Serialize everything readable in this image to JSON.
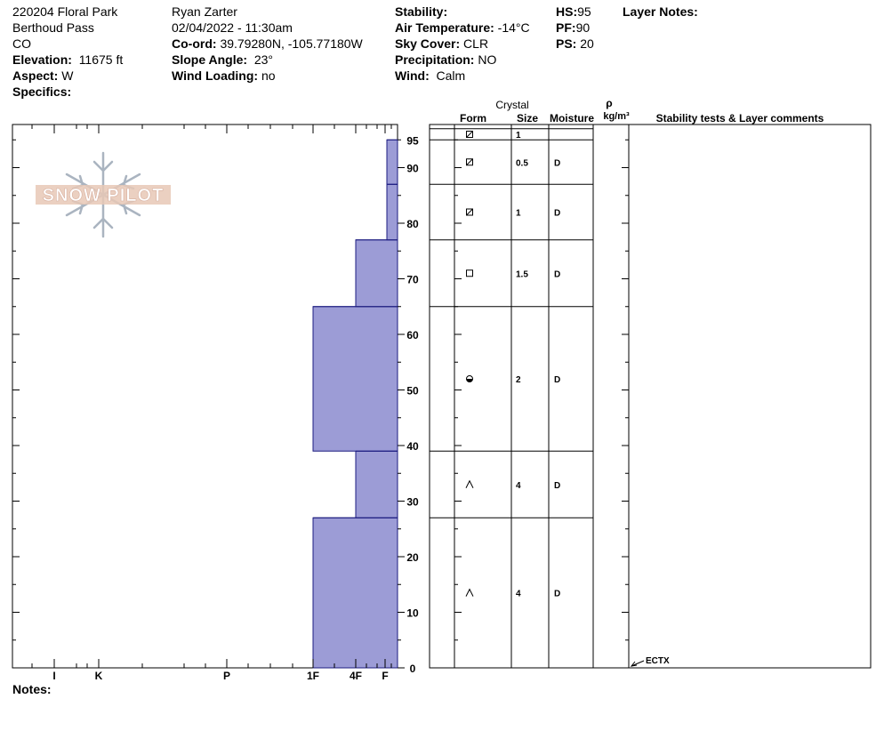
{
  "header": {
    "col1": [
      "220204 Floral Park",
      "Berthoud Pass",
      "CO"
    ],
    "elevation_label": "Elevation:",
    "elevation": "11675 ft",
    "aspect_label": "Aspect:",
    "aspect": "W",
    "specifics_label": "Specifics:",
    "observer": "Ryan Zarter",
    "datetime": "02/04/2022 - 11:30am",
    "coord_label": "Co-ord:",
    "coord": "39.79280N, -105.77180W",
    "slope_label": "Slope Angle:",
    "slope": "23°",
    "wind_loading_label": "Wind Loading:",
    "wind_loading": "no",
    "stability_label": "Stability:",
    "stability": "",
    "air_temp_label": "Air Temperature:",
    "air_temp": "-14°C",
    "sky_label": "Sky Cover:",
    "sky": "CLR",
    "precip_label": "Precipitation:",
    "precip": "NO",
    "wind_label": "Wind:",
    "wind": "Calm",
    "hs_label": "HS:",
    "hs": "95",
    "pf_label": "PF:",
    "pf": "90",
    "ps_label": "PS:",
    "ps": "20",
    "layer_notes_label": "Layer Notes:"
  },
  "notes_label": "Notes:",
  "logo_text": "SNOW PILOT",
  "table_headers": {
    "crystal": "Crystal",
    "form": "Form",
    "size": "Size",
    "moisture": "Moisture",
    "rho": "ρ",
    "density_unit": "kg/m³",
    "stability": "Stability tests & Layer comments"
  },
  "chart_data": {
    "type": "bar",
    "title": "",
    "ylabel": "",
    "ylim": [
      0,
      97
    ],
    "y_ticks": [
      0,
      10,
      20,
      30,
      40,
      50,
      60,
      70,
      80,
      90,
      95
    ],
    "hardness_scale": [
      "I",
      "K",
      "P",
      "1F",
      "4F",
      "F"
    ],
    "bar_color": "#9c9cd6",
    "layers": [
      {
        "bottom": 0,
        "top": 27,
        "hardness": "1F",
        "form": "depth-hoar",
        "size": "4",
        "moisture": "D"
      },
      {
        "bottom": 27,
        "top": 39,
        "hardness": "4F",
        "form": "depth-hoar",
        "size": "4",
        "moisture": "D"
      },
      {
        "bottom": 39,
        "top": 65,
        "hardness": "1F",
        "form": "rounded",
        "size": "2",
        "moisture": "D"
      },
      {
        "bottom": 65,
        "top": 77,
        "hardness": "4F",
        "form": "faceted",
        "size": "1.5",
        "moisture": "D"
      },
      {
        "bottom": 77,
        "top": 87,
        "hardness": "F+",
        "form": "decomposing",
        "size": "1",
        "moisture": "D"
      },
      {
        "bottom": 87,
        "top": 95,
        "hardness": "F+",
        "form": "decomposing",
        "size": "0.5",
        "moisture": "D"
      },
      {
        "bottom": 95,
        "top": 97,
        "hardness": "",
        "form": "decomposing",
        "size": "1",
        "moisture": ""
      }
    ],
    "tests": [
      {
        "label": "ECTX",
        "depth": 0
      }
    ]
  }
}
